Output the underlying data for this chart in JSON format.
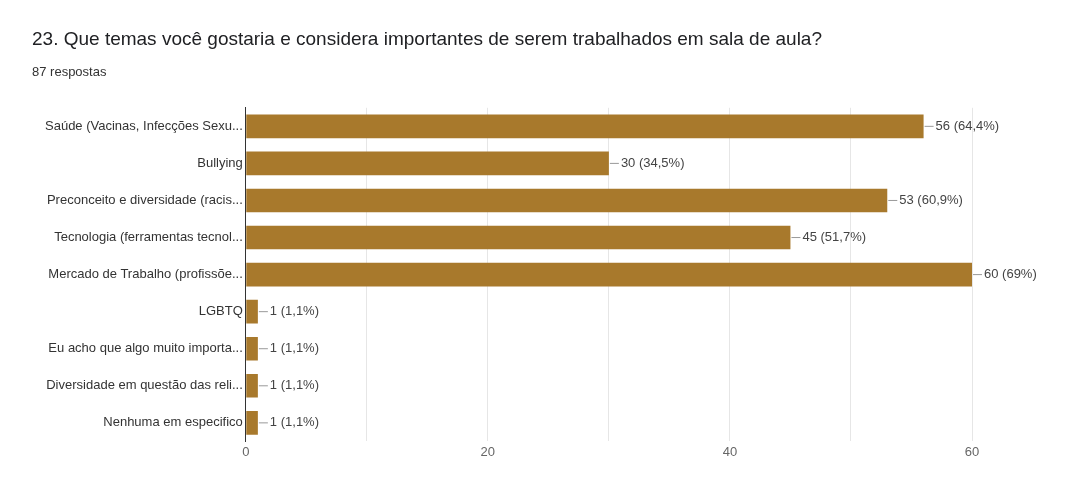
{
  "chart_data": {
    "type": "bar",
    "orientation": "horizontal",
    "title": "23. Que temas você gostaria e considera importantes de serem trabalhados em sala de aula?",
    "subtitle": "87 respostas",
    "categories": [
      "Saúde (Vacinas, Infecções Sexu...",
      "Bullying",
      "Preconceito e diversidade (racis...",
      "Tecnologia (ferramentas tecnol...",
      "Mercado de Trabalho (profissõe...",
      "LGBTQ",
      "Eu acho que algo muito importa...",
      "Diversidade em questão das reli...",
      "Nenhuma em especifico"
    ],
    "values": [
      56,
      30,
      53,
      45,
      60,
      1,
      1,
      1,
      1
    ],
    "value_labels": [
      "56 (64,4%)",
      "30 (34,5%)",
      "53 (60,9%)",
      "45 (51,7%)",
      "60 (69%)",
      "1 (1,1%)",
      "1 (1,1%)",
      "1 (1,1%)",
      "1 (1,1%)"
    ],
    "color": "#a8792c",
    "xlim": [
      0,
      60
    ],
    "xticks": [
      0,
      {
        "value": 10,
        "label": null
      },
      20,
      {
        "value": 30,
        "label": null
      },
      40,
      {
        "value": 50,
        "label": null
      },
      60
    ],
    "grid": "x",
    "legend": false
  }
}
